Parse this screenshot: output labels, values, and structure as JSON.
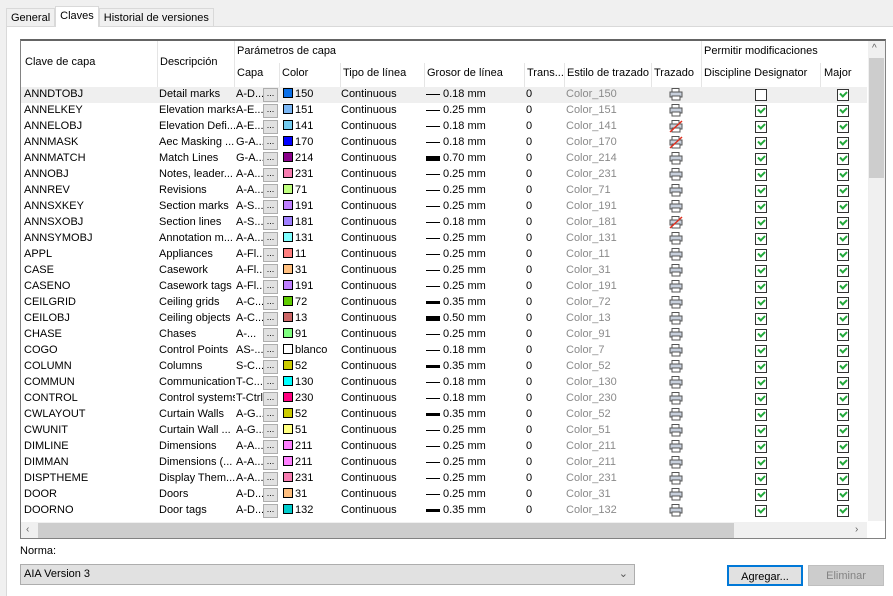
{
  "tabs": [
    {
      "label": "General"
    },
    {
      "label": "Claves",
      "active": true
    },
    {
      "label": "Historial de versiones"
    }
  ],
  "headers": {
    "key": "Clave de capa",
    "desc": "Descripción",
    "params": "Parámetros de capa",
    "capa": "Capa",
    "color": "Color",
    "linetype": "Tipo de línea",
    "lineweight": "Grosor de línea",
    "trans": "Trans...",
    "style": "Estilo de trazado",
    "plot": "Trazado",
    "allow": "Permitir modificaciones",
    "discipline": "Discipline Designator",
    "major": "Major"
  },
  "button_ellipsis": "...",
  "rows": [
    [
      "ANNDTOBJ",
      "Detail marks",
      "A-D...",
      "#0a6fe8",
      "150",
      "Continuous",
      "0.18 mm",
      "0",
      "Color_150",
      true,
      false,
      true
    ],
    [
      "ANNELKEY",
      "Elevation marks",
      "A-E...",
      "#7ab6f4",
      "151",
      "Continuous",
      "0.25 mm",
      "0",
      "Color_151",
      true,
      true,
      true
    ],
    [
      "ANNELOBJ",
      "Elevation Defi...",
      "A-E...",
      "#73cbf0",
      "141",
      "Continuous",
      "0.18 mm",
      "0",
      "Color_141",
      false,
      true,
      true
    ],
    [
      "ANNMASK",
      "Aec Masking ...",
      "G-A...",
      "#0000ff",
      "170",
      "Continuous",
      "0.18 mm",
      "0",
      "Color_170",
      false,
      true,
      true
    ],
    [
      "ANNMATCH",
      "Match Lines",
      "G-A...",
      "#8a008a",
      "214",
      "Continuous",
      "0.70 mm",
      "0",
      "Color_214",
      true,
      true,
      true
    ],
    [
      "ANNOBJ",
      "Notes, leader...",
      "A-A...",
      "#f77cb0",
      "231",
      "Continuous",
      "0.25 mm",
      "0",
      "Color_231",
      true,
      true,
      true
    ],
    [
      "ANNREV",
      "Revisions",
      "A-A...",
      "#bfff7f",
      "71",
      "Continuous",
      "0.25 mm",
      "0",
      "Color_71",
      true,
      true,
      true
    ],
    [
      "ANNSXKEY",
      "Section marks",
      "A-S...",
      "#bf7fff",
      "191",
      "Continuous",
      "0.25 mm",
      "0",
      "Color_191",
      true,
      true,
      true
    ],
    [
      "ANNSXOBJ",
      "Section lines",
      "A-S...",
      "#9f7fff",
      "181",
      "Continuous",
      "0.18 mm",
      "0",
      "Color_181",
      false,
      true,
      true
    ],
    [
      "ANNSYMOBJ",
      "Annotation m...",
      "A-A...",
      "#7fffff",
      "131",
      "Continuous",
      "0.25 mm",
      "0",
      "Color_131",
      true,
      true,
      true
    ],
    [
      "APPL",
      "Appliances",
      "A-Fl...",
      "#ff7f7f",
      "11",
      "Continuous",
      "0.25 mm",
      "0",
      "Color_11",
      true,
      true,
      true
    ],
    [
      "CASE",
      "Casework",
      "A-Fl...",
      "#ffbf7f",
      "31",
      "Continuous",
      "0.25 mm",
      "0",
      "Color_31",
      true,
      true,
      true
    ],
    [
      "CASENO",
      "Casework tags",
      "A-Fl...",
      "#bf7fff",
      "191",
      "Continuous",
      "0.25 mm",
      "0",
      "Color_191",
      true,
      true,
      true
    ],
    [
      "CEILGRID",
      "Ceiling grids",
      "A-C...",
      "#5fcc00",
      "72",
      "Continuous",
      "0.35 mm",
      "0",
      "Color_72",
      true,
      true,
      true
    ],
    [
      "CEILOBJ",
      "Ceiling objects",
      "A-C...",
      "#cc6666",
      "13",
      "Continuous",
      "0.50 mm",
      "0",
      "Color_13",
      true,
      true,
      true
    ],
    [
      "CHASE",
      "Chases",
      "A-...",
      "#7fff7f",
      "91",
      "Continuous",
      "0.25 mm",
      "0",
      "Color_91",
      true,
      true,
      true
    ],
    [
      "COGO",
      "Control Points",
      "AS-...",
      "#ffffff",
      "blanco",
      "Continuous",
      "0.18 mm",
      "0",
      "Color_7",
      true,
      true,
      true
    ],
    [
      "COLUMN",
      "Columns",
      "S-C...",
      "#cccc00",
      "52",
      "Continuous",
      "0.35 mm",
      "0",
      "Color_52",
      true,
      true,
      true
    ],
    [
      "COMMUN",
      "Communication",
      "T-C...",
      "#00ffff",
      "130",
      "Continuous",
      "0.18 mm",
      "0",
      "Color_130",
      true,
      true,
      true
    ],
    [
      "CONTROL",
      "Control systems",
      "T-Ctrl",
      "#ff007f",
      "230",
      "Continuous",
      "0.18 mm",
      "0",
      "Color_230",
      true,
      true,
      true
    ],
    [
      "CWLAYOUT",
      "Curtain Walls",
      "A-G...",
      "#cccc00",
      "52",
      "Continuous",
      "0.35 mm",
      "0",
      "Color_52",
      true,
      true,
      true
    ],
    [
      "CWUNIT",
      "Curtain Wall ...",
      "A-G...",
      "#ffff7f",
      "51",
      "Continuous",
      "0.25 mm",
      "0",
      "Color_51",
      true,
      true,
      true
    ],
    [
      "DIMLINE",
      "Dimensions",
      "A-A...",
      "#ff7fff",
      "211",
      "Continuous",
      "0.25 mm",
      "0",
      "Color_211",
      true,
      true,
      true
    ],
    [
      "DIMMAN",
      "Dimensions (...",
      "A-A...",
      "#ff7fff",
      "211",
      "Continuous",
      "0.25 mm",
      "0",
      "Color_211",
      true,
      true,
      true
    ],
    [
      "DISPTHEME",
      "Display Them...",
      "A-A...",
      "#f77cb0",
      "231",
      "Continuous",
      "0.25 mm",
      "0",
      "Color_231",
      true,
      true,
      true
    ],
    [
      "DOOR",
      "Doors",
      "A-D...",
      "#ffbf7f",
      "31",
      "Continuous",
      "0.25 mm",
      "0",
      "Color_31",
      true,
      true,
      true
    ],
    [
      "DOORNO",
      "Door tags",
      "A-D...",
      "#00cccc",
      "132",
      "Continuous",
      "0.35 mm",
      "0",
      "Color_132",
      true,
      true,
      true
    ]
  ],
  "norma": {
    "label": "Norma:",
    "value": "AIA Version 3"
  },
  "buttons": {
    "add": "Agregar...",
    "delete": "Eliminar"
  }
}
